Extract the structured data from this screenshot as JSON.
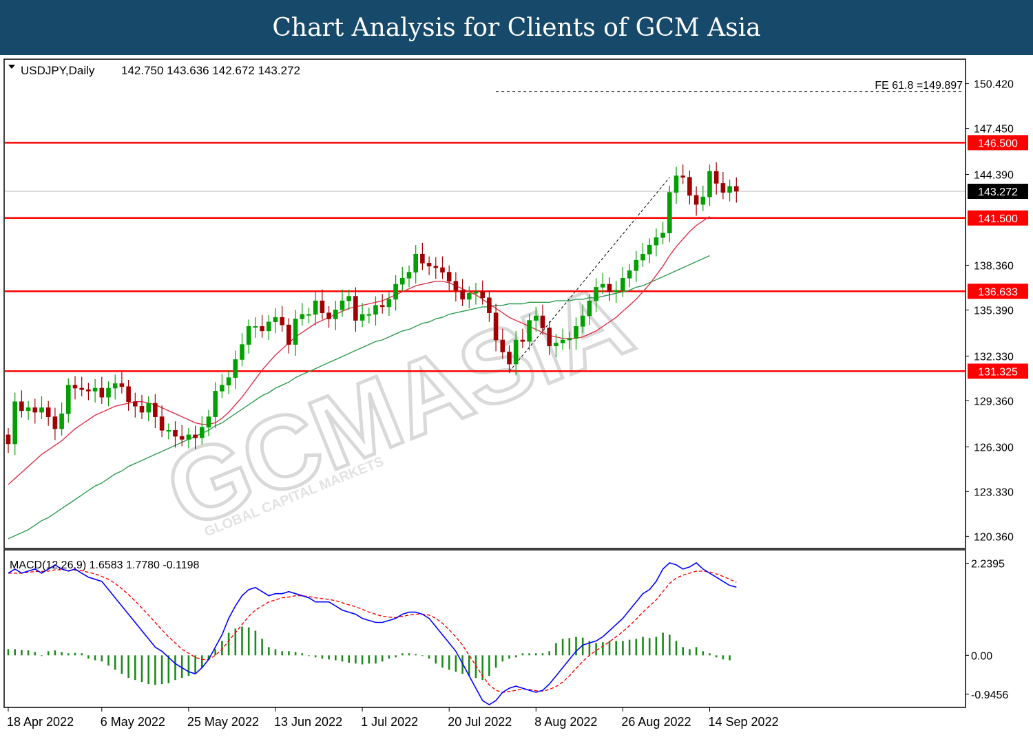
{
  "page_title": "Chart Analysis for Clients of GCM Asia",
  "watermark": "GCMASIA",
  "watermark_sub": "GLOBAL CAPITAL MARKETS",
  "colors": {
    "banner_bg": "#17496a",
    "level_line": "#ff0000",
    "price_tag_bg": "#ff0000",
    "current_tag_bg": "#000000",
    "bull_candle": "#00a000",
    "bear_candle": "#a00000",
    "ma_fast": "#e0304a",
    "ma_slow": "#2e9b4f",
    "macd_line": "#0000ff",
    "signal_line": "#ff0000",
    "histogram": "#1c8a1c"
  },
  "chart_data": [
    {
      "type": "candlestick",
      "symbol_label": "USDJPY,Daily",
      "ohlc_label": "142.750 143.636 142.672 143.272",
      "ylim": [
        119.6,
        152.0
      ],
      "y_ticks": [
        "150.420",
        "147.450",
        "144.390",
        "138.360",
        "135.390",
        "132.330",
        "129.360",
        "126.300",
        "123.330",
        "120.360"
      ],
      "x_ticks": [
        {
          "label": "18 Apr 2022",
          "index": 0
        },
        {
          "label": "6 May 2022",
          "index": 14
        },
        {
          "label": "25 May 2022",
          "index": 27
        },
        {
          "label": "13 Jun 2022",
          "index": 40
        },
        {
          "label": "1 Jul 2022",
          "index": 53
        },
        {
          "label": "20 Jul 2022",
          "index": 66
        },
        {
          "label": "8 Aug 2022",
          "index": 79
        },
        {
          "label": "26 Aug 2022",
          "index": 92
        },
        {
          "label": "14 Sep 2022",
          "index": 105
        }
      ],
      "levels": [
        {
          "value": 146.5,
          "label": "146.500"
        },
        {
          "value": 141.5,
          "label": "141.500"
        },
        {
          "value": 136.633,
          "label": "136.633"
        },
        {
          "value": 131.325,
          "label": "131.325"
        }
      ],
      "current_price": {
        "value": 143.272,
        "label": "143.272"
      },
      "fe_line": {
        "value": 149.897,
        "label": "FE 61.8 =149.897",
        "from_index": 73
      },
      "trendline": {
        "from_index": 75,
        "from_value": 131.3,
        "to_index": 99,
        "to_value": 144.2
      },
      "closes": [
        126.5,
        129.3,
        128.7,
        128.9,
        128.6,
        128.9,
        128.3,
        127.5,
        128.5,
        130.4,
        130.2,
        130.1,
        130.0,
        130.2,
        129.6,
        130.2,
        130.5,
        130.3,
        129.3,
        129.0,
        128.6,
        129.2,
        128.3,
        127.4,
        127.4,
        127.0,
        126.8,
        127.1,
        126.9,
        127.6,
        128.3,
        130.0,
        130.4,
        130.9,
        132.1,
        133.1,
        134.3,
        134.3,
        134.0,
        134.6,
        134.9,
        134.4,
        133.1,
        134.8,
        135.1,
        135.1,
        136.0,
        135.2,
        134.8,
        135.4,
        136.0,
        136.3,
        134.7,
        135.1,
        135.1,
        135.7,
        135.6,
        136.1,
        137.1,
        137.5,
        137.9,
        139.1,
        138.5,
        138.3,
        138.2,
        137.9,
        137.3,
        136.7,
        136.1,
        136.5,
        136.6,
        136.2,
        135.2,
        133.4,
        132.6,
        131.8,
        133.4,
        133.3,
        134.7,
        135.0,
        134.2,
        133.0,
        133.2,
        133.4,
        133.5,
        134.3,
        135.0,
        136.0,
        136.9,
        137.1,
        136.6,
        136.7,
        137.5,
        138.0,
        138.7,
        139.1,
        139.7,
        140.2,
        140.5,
        143.2,
        144.3,
        144.2,
        143.0,
        142.4,
        142.9,
        144.6,
        143.8,
        143.2,
        143.6,
        143.272
      ],
      "ma_fast": [
        123.8,
        124.2,
        124.6,
        125.0,
        125.4,
        125.8,
        126.1,
        126.4,
        126.7,
        127.1,
        127.5,
        127.8,
        128.1,
        128.4,
        128.6,
        128.8,
        129.0,
        129.1,
        129.2,
        129.3,
        129.3,
        129.2,
        129.1,
        128.9,
        128.7,
        128.5,
        128.3,
        128.1,
        127.9,
        127.8,
        127.8,
        127.9,
        128.2,
        128.6,
        129.1,
        129.6,
        130.2,
        130.8,
        131.4,
        131.9,
        132.4,
        132.8,
        133.2,
        133.6,
        133.9,
        134.2,
        134.5,
        134.7,
        134.9,
        135.1,
        135.3,
        135.5,
        135.6,
        135.7,
        135.8,
        135.9,
        136.0,
        136.2,
        136.4,
        136.6,
        136.8,
        137.0,
        137.1,
        137.2,
        137.3,
        137.3,
        137.2,
        137.0,
        136.8,
        136.6,
        136.4,
        136.1,
        135.8,
        135.5,
        135.2,
        134.9,
        134.7,
        134.5,
        134.3,
        134.1,
        133.9,
        133.7,
        133.6,
        133.5,
        133.5,
        133.5,
        133.6,
        133.8,
        134.0,
        134.3,
        134.6,
        134.9,
        135.3,
        135.7,
        136.1,
        136.6,
        137.1,
        137.7,
        138.3,
        139.0,
        139.6,
        140.1,
        140.6,
        141.0,
        141.3,
        141.6,
        null,
        null,
        null,
        null
      ],
      "ma_slow": [
        120.2,
        120.4,
        120.6,
        120.8,
        121.1,
        121.4,
        121.6,
        121.9,
        122.2,
        122.5,
        122.8,
        123.1,
        123.4,
        123.7,
        123.9,
        124.2,
        124.5,
        124.7,
        125.0,
        125.2,
        125.4,
        125.6,
        125.8,
        126.0,
        126.2,
        126.4,
        126.6,
        126.8,
        127.0,
        127.2,
        127.4,
        127.7,
        127.9,
        128.2,
        128.5,
        128.8,
        129.1,
        129.4,
        129.7,
        129.9,
        130.2,
        130.4,
        130.6,
        130.9,
        131.1,
        131.3,
        131.5,
        131.7,
        131.9,
        132.1,
        132.3,
        132.5,
        132.7,
        132.9,
        133.1,
        133.3,
        133.4,
        133.6,
        133.8,
        134.0,
        134.1,
        134.3,
        134.5,
        134.6,
        134.8,
        134.9,
        135.1,
        135.2,
        135.3,
        135.4,
        135.5,
        135.6,
        135.6,
        135.7,
        135.7,
        135.8,
        135.8,
        135.8,
        135.9,
        135.9,
        135.9,
        135.9,
        136.0,
        136.0,
        136.0,
        136.1,
        136.1,
        136.2,
        136.2,
        136.3,
        136.4,
        136.5,
        136.6,
        136.7,
        136.9,
        137.0,
        137.2,
        137.4,
        137.6,
        137.8,
        138.0,
        138.2,
        138.4,
        138.6,
        138.8,
        139.0,
        null,
        null,
        null,
        null
      ]
    },
    {
      "type": "line",
      "label": "MACD(12,26,9) 1.6583 1.7780 -0.1198",
      "ylim": [
        -1.25,
        2.55
      ],
      "y_ticks": [
        "2.2395",
        "0.00",
        "-0.9456"
      ],
      "series": [
        {
          "name": "MACD",
          "values": [
            2.0,
            2.1,
            2.0,
            2.05,
            2.1,
            2.0,
            2.1,
            2.2,
            2.1,
            2.05,
            2.1,
            2.0,
            1.9,
            1.85,
            1.8,
            1.6,
            1.4,
            1.2,
            1.0,
            0.8,
            0.6,
            0.4,
            0.2,
            0.1,
            -0.05,
            -0.2,
            -0.3,
            -0.4,
            -0.45,
            -0.3,
            -0.1,
            0.2,
            0.5,
            0.9,
            1.2,
            1.45,
            1.6,
            1.65,
            1.55,
            1.45,
            1.5,
            1.5,
            1.55,
            1.5,
            1.45,
            1.4,
            1.3,
            1.3,
            1.3,
            1.2,
            1.1,
            1.05,
            1.0,
            0.9,
            0.85,
            0.8,
            0.8,
            0.85,
            0.9,
            1.0,
            1.05,
            1.05,
            1.0,
            0.9,
            0.7,
            0.5,
            0.3,
            0.1,
            -0.2,
            -0.5,
            -0.8,
            -1.1,
            -1.2,
            -1.1,
            -0.9,
            -0.8,
            -0.75,
            -0.8,
            -0.85,
            -0.9,
            -0.85,
            -0.7,
            -0.5,
            -0.3,
            -0.1,
            0.1,
            0.25,
            0.3,
            0.35,
            0.45,
            0.6,
            0.75,
            0.9,
            1.1,
            1.3,
            1.5,
            1.6,
            1.8,
            2.1,
            2.25,
            2.2,
            2.1,
            2.15,
            2.25,
            2.1,
            2.0,
            1.9,
            1.8,
            1.7,
            1.66
          ]
        },
        {
          "name": "Signal",
          "values": [
            2.0,
            2.0,
            2.0,
            2.02,
            2.04,
            2.04,
            2.05,
            2.08,
            2.08,
            2.07,
            2.07,
            2.06,
            2.02,
            1.98,
            1.92,
            1.85,
            1.75,
            1.62,
            1.48,
            1.32,
            1.15,
            0.98,
            0.8,
            0.62,
            0.45,
            0.3,
            0.15,
            0.05,
            -0.05,
            -0.1,
            -0.1,
            0.0,
            0.15,
            0.35,
            0.55,
            0.75,
            0.95,
            1.1,
            1.2,
            1.3,
            1.35,
            1.4,
            1.42,
            1.45,
            1.45,
            1.43,
            1.4,
            1.38,
            1.36,
            1.33,
            1.28,
            1.23,
            1.18,
            1.12,
            1.05,
            1.0,
            0.95,
            0.93,
            0.92,
            0.95,
            0.98,
            1.0,
            1.0,
            0.98,
            0.9,
            0.78,
            0.62,
            0.45,
            0.25,
            0.0,
            -0.25,
            -0.5,
            -0.72,
            -0.85,
            -0.9,
            -0.88,
            -0.85,
            -0.82,
            -0.83,
            -0.86,
            -0.87,
            -0.83,
            -0.76,
            -0.65,
            -0.5,
            -0.32,
            -0.15,
            0.0,
            0.12,
            0.22,
            0.33,
            0.45,
            0.58,
            0.72,
            0.88,
            1.05,
            1.2,
            1.35,
            1.55,
            1.75,
            1.88,
            1.95,
            2.0,
            2.05,
            2.05,
            2.03,
            1.98,
            1.92,
            1.85,
            1.778
          ]
        },
        {
          "name": "Histogram",
          "values": [
            0.15,
            0.15,
            0.13,
            0.12,
            0.08,
            0.0,
            0.1,
            0.12,
            0.08,
            0.05,
            0.06,
            0.05,
            -0.08,
            -0.12,
            -0.15,
            -0.25,
            -0.35,
            -0.45,
            -0.55,
            -0.6,
            -0.65,
            -0.7,
            -0.72,
            -0.7,
            -0.68,
            -0.6,
            -0.55,
            -0.5,
            -0.45,
            -0.3,
            -0.1,
            0.15,
            0.35,
            0.55,
            0.65,
            0.7,
            0.68,
            0.6,
            0.4,
            0.2,
            0.15,
            0.1,
            0.1,
            0.08,
            0.05,
            0.0,
            -0.05,
            -0.08,
            -0.1,
            -0.12,
            -0.15,
            -0.18,
            -0.2,
            -0.22,
            -0.2,
            -0.2,
            -0.15,
            -0.08,
            -0.05,
            0.05,
            0.05,
            0.03,
            0.0,
            -0.08,
            -0.2,
            -0.3,
            -0.35,
            -0.4,
            -0.45,
            -0.5,
            -0.55,
            -0.6,
            -0.5,
            -0.3,
            -0.15,
            -0.08,
            -0.05,
            0.05,
            0.05,
            0.05,
            0.05,
            0.1,
            0.3,
            0.4,
            0.42,
            0.45,
            0.43,
            0.35,
            0.3,
            0.32,
            0.35,
            0.35,
            0.35,
            0.38,
            0.4,
            0.45,
            0.42,
            0.45,
            0.55,
            0.5,
            0.35,
            0.2,
            0.15,
            0.2,
            0.1,
            0.05,
            -0.05,
            -0.1,
            -0.12
          ]
        }
      ]
    }
  ]
}
